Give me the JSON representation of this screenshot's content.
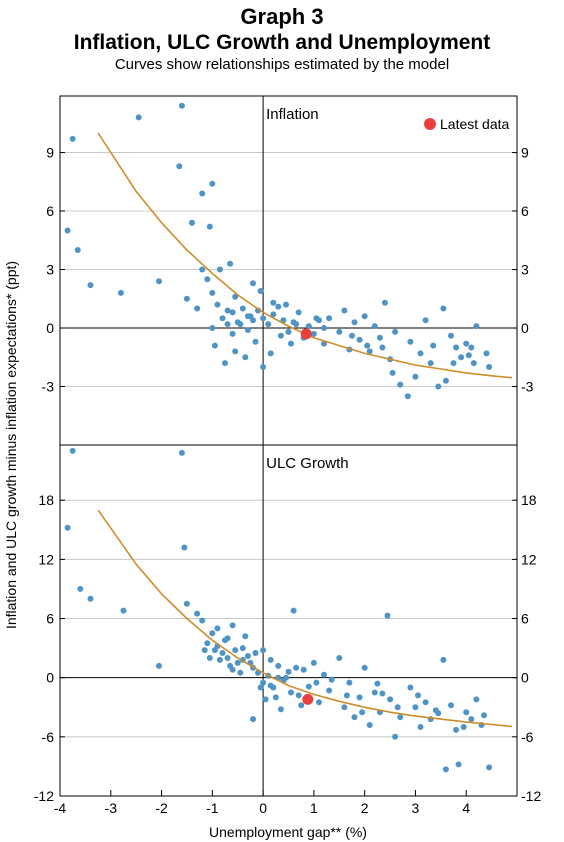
{
  "header": {
    "title": "Graph 3",
    "subtitle": "Inflation, ULC Growth and Unemployment",
    "caption": "Curves show relationships estimated by the model"
  },
  "colors": {
    "points": "#4f94c4",
    "latest": "#e8413c",
    "curve": "#d08c2a",
    "grid": "#c8c8c8",
    "axis": "#000000"
  },
  "chart_data": [
    {
      "type": "scatter",
      "title": "Inflation",
      "xlabel": "Unemployment gap** (%)",
      "ylabel": "Inflation and ULC growth minus inflation expectations*  (ppt)",
      "xlim": [
        -4,
        5
      ],
      "ylim": [
        -6,
        11.9
      ],
      "xticks": [
        -4,
        -3,
        -2,
        -1,
        0,
        1,
        2,
        3,
        4
      ],
      "yticks": [
        -3,
        0,
        3,
        6,
        9
      ],
      "grid": true,
      "legend": {
        "label": "Latest data",
        "position": "top-right"
      },
      "latest": {
        "x": 0.85,
        "y": -0.3
      },
      "curve": {
        "x_start": -3.25,
        "x_end": 4.9,
        "points": [
          [
            -3.25,
            10.0
          ],
          [
            -2.5,
            7.0
          ],
          [
            -2.0,
            5.4
          ],
          [
            -1.5,
            4.0
          ],
          [
            -1.0,
            2.8
          ],
          [
            -0.5,
            1.7
          ],
          [
            0,
            0.8
          ],
          [
            0.5,
            0.1
          ],
          [
            1.0,
            -0.5
          ],
          [
            1.5,
            -0.9
          ],
          [
            2.0,
            -1.3
          ],
          [
            2.5,
            -1.6
          ],
          [
            3.0,
            -1.9
          ],
          [
            3.5,
            -2.1
          ],
          [
            4.0,
            -2.3
          ],
          [
            4.5,
            -2.45
          ],
          [
            4.9,
            -2.55
          ]
        ]
      },
      "points": [
        [
          -3.85,
          5.0
        ],
        [
          -3.75,
          9.7
        ],
        [
          -3.65,
          4.0
        ],
        [
          -3.4,
          2.2
        ],
        [
          -2.8,
          1.8
        ],
        [
          -2.45,
          10.8
        ],
        [
          -2.05,
          2.4
        ],
        [
          -1.6,
          11.4
        ],
        [
          -1.65,
          8.3
        ],
        [
          -1.2,
          6.9
        ],
        [
          -1.0,
          7.4
        ],
        [
          -1.05,
          5.2
        ],
        [
          -1.4,
          5.4
        ],
        [
          -0.65,
          3.3
        ],
        [
          -1.5,
          1.5
        ],
        [
          -1.3,
          1.0
        ],
        [
          -1.1,
          2.5
        ],
        [
          -1.0,
          1.8
        ],
        [
          -0.9,
          1.2
        ],
        [
          -0.8,
          0.5
        ],
        [
          -0.7,
          0.2
        ],
        [
          -0.6,
          0.8
        ],
        [
          -0.5,
          0.3
        ],
        [
          -0.4,
          1.0
        ],
        [
          -0.3,
          0.6
        ],
        [
          -0.2,
          0.4
        ],
        [
          -0.1,
          0.9
        ],
        [
          0.0,
          0.5
        ],
        [
          0.1,
          0.2
        ],
        [
          0.2,
          0.7
        ],
        [
          0.3,
          1.1
        ],
        [
          0.4,
          0.4
        ],
        [
          0.5,
          -0.2
        ],
        [
          0.6,
          0.3
        ],
        [
          0.7,
          0.8
        ],
        [
          0.8,
          -0.5
        ],
        [
          0.9,
          0.1
        ],
        [
          1.0,
          -0.3
        ],
        [
          1.1,
          0.4
        ],
        [
          1.2,
          -0.8
        ],
        [
          1.3,
          0.5
        ],
        [
          1.5,
          -0.2
        ],
        [
          1.6,
          0.9
        ],
        [
          1.7,
          -1.1
        ],
        [
          1.8,
          0.3
        ],
        [
          1.9,
          -0.6
        ],
        [
          2.0,
          0.6
        ],
        [
          2.1,
          -1.2
        ],
        [
          2.2,
          0.1
        ],
        [
          2.3,
          -0.5
        ],
        [
          2.4,
          1.3
        ],
        [
          2.5,
          -1.6
        ],
        [
          2.55,
          -2.3
        ],
        [
          2.7,
          -2.9
        ],
        [
          2.85,
          -3.5
        ],
        [
          3.0,
          -2.5
        ],
        [
          3.1,
          -1.3
        ],
        [
          3.2,
          0.4
        ],
        [
          3.3,
          -1.8
        ],
        [
          3.45,
          -3.0
        ],
        [
          3.55,
          1.0
        ],
        [
          3.6,
          -2.7
        ],
        [
          3.7,
          -0.4
        ],
        [
          3.8,
          -1.0
        ],
        [
          3.9,
          -1.5
        ],
        [
          4.0,
          -0.8
        ],
        [
          4.05,
          -1.4
        ],
        [
          4.15,
          -1.8
        ],
        [
          4.2,
          0.1
        ],
        [
          4.4,
          -1.3
        ],
        [
          4.45,
          -2.0
        ],
        [
          -0.95,
          -0.9
        ],
        [
          -0.75,
          -1.8
        ],
        [
          -0.55,
          -1.2
        ],
        [
          -0.35,
          -1.5
        ],
        [
          -0.15,
          -0.7
        ],
        [
          0.0,
          -2.0
        ],
        [
          0.15,
          -1.3
        ],
        [
          -0.55,
          1.6
        ],
        [
          -0.2,
          2.3
        ],
        [
          0.2,
          1.3
        ],
        [
          -0.05,
          1.9
        ],
        [
          -0.85,
          3.0
        ],
        [
          -1.2,
          3.0
        ],
        [
          -1.0,
          0.0
        ],
        [
          -0.6,
          -0.3
        ],
        [
          -0.3,
          -0.1
        ],
        [
          0.35,
          -0.4
        ],
        [
          0.65,
          0.2
        ],
        [
          1.2,
          0.0
        ],
        [
          1.75,
          -0.4
        ],
        [
          2.05,
          -0.9
        ],
        [
          2.35,
          -1.0
        ],
        [
          2.6,
          -0.2
        ],
        [
          2.9,
          -0.7
        ],
        [
          3.35,
          -0.9
        ],
        [
          3.75,
          -1.8
        ],
        [
          4.1,
          -1.0
        ],
        [
          0.45,
          1.2
        ],
        [
          -0.25,
          0.6
        ],
        [
          -0.45,
          0.2
        ],
        [
          -0.7,
          0.9
        ],
        [
          0.55,
          -0.8
        ],
        [
          1.05,
          0.5
        ]
      ]
    },
    {
      "type": "scatter",
      "title": "ULC Growth",
      "xlabel": "Unemployment gap** (%)",
      "ylabel": "Inflation and ULC growth minus inflation expectations*  (ppt)",
      "xlim": [
        -4,
        5
      ],
      "ylim": [
        -12,
        23.6
      ],
      "xticks": [
        -4,
        -3,
        -2,
        -1,
        0,
        1,
        2,
        3,
        4
      ],
      "yticks": [
        -12,
        -6,
        0,
        6,
        12,
        18
      ],
      "grid": true,
      "latest": {
        "x": 0.88,
        "y": -2.2
      },
      "curve": {
        "x_start": -3.25,
        "x_end": 4.9,
        "points": [
          [
            -3.25,
            17.0
          ],
          [
            -2.5,
            11.5
          ],
          [
            -2.0,
            8.5
          ],
          [
            -1.5,
            6.0
          ],
          [
            -1.0,
            3.8
          ],
          [
            -0.5,
            2.0
          ],
          [
            0,
            0.5
          ],
          [
            0.5,
            -0.8
          ],
          [
            1.0,
            -1.7
          ],
          [
            1.5,
            -2.4
          ],
          [
            2.0,
            -3.0
          ],
          [
            2.5,
            -3.5
          ],
          [
            3.0,
            -3.9
          ],
          [
            3.5,
            -4.2
          ],
          [
            4.0,
            -4.5
          ],
          [
            4.5,
            -4.75
          ],
          [
            4.9,
            -4.95
          ]
        ]
      },
      "points": [
        [
          -3.85,
          15.2
        ],
        [
          -3.75,
          23.0
        ],
        [
          -3.6,
          9.0
        ],
        [
          -3.4,
          8.0
        ],
        [
          -2.75,
          6.8
        ],
        [
          -2.05,
          1.2
        ],
        [
          -1.6,
          22.8
        ],
        [
          -1.55,
          13.2
        ],
        [
          -1.5,
          7.5
        ],
        [
          -1.3,
          6.5
        ],
        [
          -1.2,
          5.8
        ],
        [
          -1.0,
          4.5
        ],
        [
          -0.9,
          3.2
        ],
        [
          -0.8,
          2.5
        ],
        [
          -0.7,
          2.0
        ],
        [
          -0.6,
          5.3
        ],
        [
          -0.5,
          1.5
        ],
        [
          -0.4,
          3.0
        ],
        [
          -0.3,
          2.2
        ],
        [
          -0.2,
          1.0
        ],
        [
          -0.1,
          0.5
        ],
        [
          0.0,
          -0.5
        ],
        [
          0.1,
          0.2
        ],
        [
          0.2,
          -1.0
        ],
        [
          0.3,
          1.2
        ],
        [
          0.4,
          -0.3
        ],
        [
          0.5,
          0.6
        ],
        [
          0.6,
          6.8
        ],
        [
          0.7,
          -1.8
        ],
        [
          0.8,
          0.8
        ],
        [
          0.9,
          -0.9
        ],
        [
          1.0,
          1.5
        ],
        [
          1.1,
          -2.5
        ],
        [
          1.2,
          0.3
        ],
        [
          1.3,
          -1.3
        ],
        [
          1.5,
          2.0
        ],
        [
          1.6,
          -3.0
        ],
        [
          1.7,
          -0.5
        ],
        [
          1.8,
          -4.0
        ],
        [
          1.9,
          -2.0
        ],
        [
          2.0,
          1.0
        ],
        [
          2.1,
          -4.8
        ],
        [
          2.2,
          -1.5
        ],
        [
          2.3,
          -3.5
        ],
        [
          2.45,
          6.3
        ],
        [
          2.5,
          -2.2
        ],
        [
          2.6,
          -6.0
        ],
        [
          2.7,
          -4.0
        ],
        [
          2.9,
          -1.0
        ],
        [
          3.0,
          -3.0
        ],
        [
          3.1,
          -5.0
        ],
        [
          3.2,
          -2.5
        ],
        [
          3.3,
          -4.2
        ],
        [
          3.45,
          -3.6
        ],
        [
          3.55,
          1.8
        ],
        [
          3.6,
          -9.3
        ],
        [
          3.8,
          -5.3
        ],
        [
          3.85,
          -8.8
        ],
        [
          4.0,
          -3.5
        ],
        [
          4.1,
          -4.2
        ],
        [
          4.2,
          -2.2
        ],
        [
          4.3,
          -4.8
        ],
        [
          4.45,
          -9.1
        ],
        [
          -0.95,
          2.8
        ],
        [
          -0.85,
          1.8
        ],
        [
          -0.75,
          3.8
        ],
        [
          -0.65,
          1.2
        ],
        [
          -0.55,
          2.8
        ],
        [
          -0.45,
          0.5
        ],
        [
          -0.35,
          4.2
        ],
        [
          -0.25,
          1.5
        ],
        [
          -0.15,
          2.5
        ],
        [
          -0.05,
          -1.0
        ],
        [
          0.05,
          -2.2
        ],
        [
          0.15,
          1.8
        ],
        [
          0.25,
          -2.0
        ],
        [
          0.35,
          -3.2
        ],
        [
          0.45,
          0.0
        ],
        [
          0.55,
          -1.5
        ],
        [
          0.65,
          1.0
        ],
        [
          0.75,
          -2.8
        ],
        [
          -1.1,
          3.5
        ],
        [
          -1.15,
          2.8
        ],
        [
          -0.9,
          5.0
        ],
        [
          -0.6,
          0.8
        ],
        [
          -0.4,
          1.8
        ],
        [
          0.0,
          2.8
        ],
        [
          0.15,
          -0.8
        ],
        [
          0.3,
          0.0
        ],
        [
          1.05,
          -0.5
        ],
        [
          1.35,
          -0.2
        ],
        [
          1.65,
          -1.8
        ],
        [
          1.95,
          -3.5
        ],
        [
          2.25,
          -0.6
        ],
        [
          2.35,
          -1.6
        ],
        [
          2.65,
          -3.0
        ],
        [
          3.05,
          -1.8
        ],
        [
          3.4,
          -3.3
        ],
        [
          3.7,
          -2.8
        ],
        [
          3.95,
          -5.0
        ],
        [
          4.35,
          -3.8
        ],
        [
          -0.2,
          -4.2
        ],
        [
          -1.05,
          2.0
        ],
        [
          -0.7,
          4.0
        ]
      ]
    }
  ]
}
